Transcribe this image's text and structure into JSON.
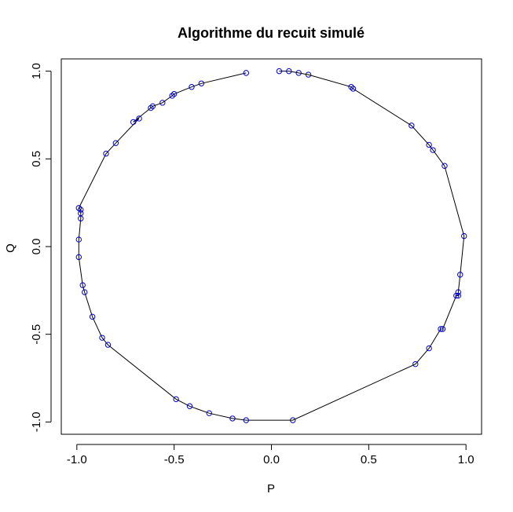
{
  "chart_data": {
    "type": "line",
    "title": "Algorithme du recuit simulé",
    "xlabel": "P",
    "ylabel": "Q",
    "xlim": [
      -1.08,
      1.08
    ],
    "ylim": [
      -1.07,
      1.07
    ],
    "xticks": [
      {
        "value": -1.0,
        "label": "-1.0"
      },
      {
        "value": -0.5,
        "label": "-0.5"
      },
      {
        "value": 0.0,
        "label": "0.0"
      },
      {
        "value": 0.5,
        "label": "0.5"
      },
      {
        "value": 1.0,
        "label": "1.0"
      }
    ],
    "yticks": [
      {
        "value": -1.0,
        "label": "-1.0"
      },
      {
        "value": -0.5,
        "label": "-0.5"
      },
      {
        "value": 0.0,
        "label": "0.0"
      },
      {
        "value": 0.5,
        "label": "0.5"
      },
      {
        "value": 1.0,
        "label": "1.0"
      }
    ],
    "grid": false,
    "legend": "none",
    "line_color": "#000000",
    "marker_color": "#0000cc",
    "marker": "open-circle",
    "series": [
      {
        "x": [
          0.04,
          0.09,
          0.14,
          0.19,
          0.41,
          0.42,
          0.72,
          0.81,
          0.83,
          0.89,
          0.99,
          0.97,
          0.96,
          0.96,
          0.95,
          0.88,
          0.87,
          0.81,
          0.74,
          0.11,
          -0.13,
          -0.2,
          -0.32,
          -0.42,
          -0.49,
          -0.84,
          -0.87,
          -0.92,
          -0.96,
          -0.97,
          -0.99,
          -0.99,
          -0.98,
          -0.98,
          -0.98,
          -0.99,
          -0.85,
          -0.8,
          -0.68,
          -0.71,
          -0.62,
          -0.61,
          -0.56,
          -0.51,
          -0.5,
          -0.41,
          -0.36,
          -0.13
        ],
        "y": [
          1.0,
          1.0,
          0.99,
          0.98,
          0.91,
          0.9,
          0.69,
          0.58,
          0.55,
          0.46,
          0.06,
          -0.16,
          -0.26,
          -0.28,
          -0.28,
          -0.47,
          -0.47,
          -0.58,
          -0.67,
          -0.99,
          -0.99,
          -0.98,
          -0.95,
          -0.91,
          -0.87,
          -0.56,
          -0.52,
          -0.4,
          -0.26,
          -0.22,
          -0.06,
          0.04,
          0.16,
          0.19,
          0.21,
          0.22,
          0.53,
          0.59,
          0.73,
          0.71,
          0.79,
          0.8,
          0.82,
          0.86,
          0.87,
          0.91,
          0.93,
          0.99
        ]
      }
    ]
  }
}
